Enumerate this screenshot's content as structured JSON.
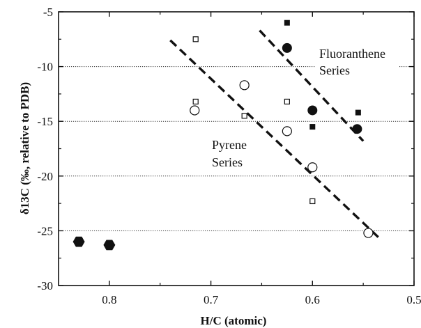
{
  "chart_data": {
    "type": "scatter",
    "xlabel": "H/C (atomic)",
    "ylabel": "δ13C (‰, relative to PDB)",
    "xlim": [
      0.85,
      0.5
    ],
    "ylim": [
      -30,
      -5
    ],
    "x_ticks": [
      0.8,
      0.7,
      0.6,
      0.5
    ],
    "y_ticks": [
      -5,
      -10,
      -15,
      -20,
      -25,
      -30
    ],
    "x_tick_labels": [
      "0.8",
      "0.7",
      "0.6",
      "0.5"
    ],
    "y_tick_labels": [
      "-5",
      "-10",
      "-15",
      "-20",
      "-25",
      "-30"
    ],
    "grid": "horizontal dotted lines at y = -10, -15, -20, -25",
    "annotations": [
      {
        "lines": [
          "Fluoranthene",
          "Series"
        ],
        "x": 0.585,
        "y": -10.4
      },
      {
        "lines": [
          "Pyrene",
          "Series"
        ],
        "x": 0.685,
        "y": -20.5
      }
    ],
    "series": [
      {
        "marker": "open-square",
        "points": [
          [
            0.715,
            -7.5
          ],
          [
            0.715,
            -13.2
          ],
          [
            0.667,
            -14.5
          ],
          [
            0.625,
            -13.2
          ],
          [
            0.6,
            -22.3
          ]
        ]
      },
      {
        "marker": "open-circle",
        "points": [
          [
            0.716,
            -14.0
          ],
          [
            0.667,
            -11.7
          ],
          [
            0.625,
            -15.9
          ],
          [
            0.6,
            -19.2
          ],
          [
            0.545,
            -25.2
          ]
        ]
      },
      {
        "marker": "filled-square",
        "points": [
          [
            0.625,
            -6.0
          ],
          [
            0.6,
            -15.5
          ],
          [
            0.555,
            -14.2
          ]
        ]
      },
      {
        "marker": "filled-circle",
        "points": [
          [
            0.625,
            -8.3
          ],
          [
            0.6,
            -14.0
          ],
          [
            0.556,
            -15.7
          ]
        ]
      },
      {
        "marker": "filled-hexagon",
        "points": [
          [
            0.83,
            -26.0
          ],
          [
            0.8,
            -26.3
          ]
        ]
      }
    ],
    "trend_lines": [
      {
        "style": "dashed",
        "from": [
          0.74,
          -7.6
        ],
        "to": [
          0.535,
          -25.6
        ]
      },
      {
        "style": "dashed",
        "from": [
          0.652,
          -6.7
        ],
        "to": [
          0.55,
          -16.8
        ]
      }
    ]
  }
}
